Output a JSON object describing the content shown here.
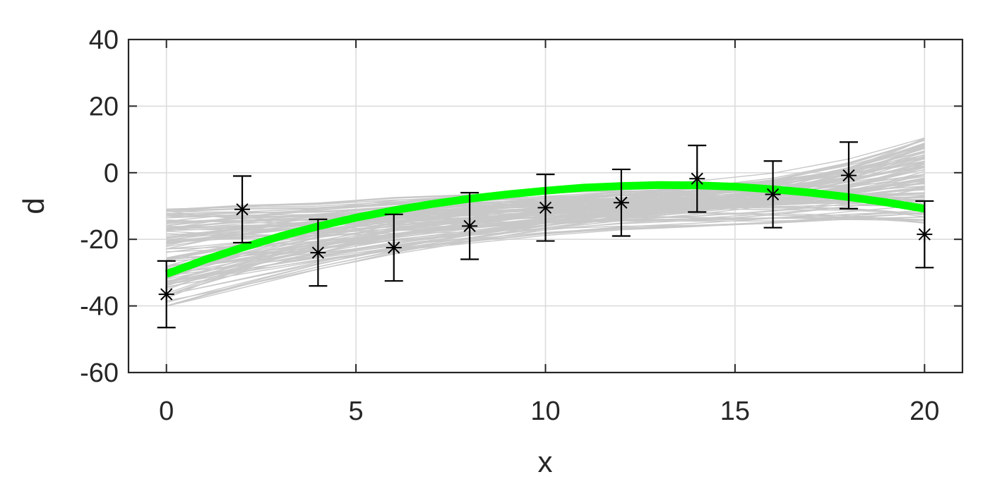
{
  "chart_data": {
    "type": "line",
    "xlabel": "x",
    "ylabel": "d",
    "xlim": [
      -1,
      21
    ],
    "ylim": [
      -60,
      40
    ],
    "xticks": [
      0,
      5,
      10,
      15,
      20
    ],
    "yticks": [
      -60,
      -40,
      -20,
      0,
      20,
      40
    ],
    "grid": true,
    "series": [
      {
        "kind": "fit_curve",
        "color": "#00ff00",
        "x": [
          0,
          1,
          2,
          3,
          4,
          5,
          6,
          7,
          8,
          9,
          10,
          11,
          12,
          13,
          14,
          15,
          16,
          17,
          18,
          19,
          20
        ],
        "values": [
          -30.4,
          -26.2,
          -22.5,
          -19.1,
          -16.1,
          -13.5,
          -11.3,
          -9.4,
          -7.8,
          -6.5,
          -5.4,
          -4.5,
          -4.0,
          -3.7,
          -3.8,
          -4.2,
          -5.0,
          -6.0,
          -7.3,
          -8.9,
          -10.8
        ]
      },
      {
        "kind": "data_with_errorbars",
        "color": "#000000",
        "marker": "asterisk",
        "x": [
          0,
          2,
          4,
          6,
          8,
          10,
          12,
          14,
          16,
          18,
          20
        ],
        "values": [
          -36.5,
          -11.0,
          -24.0,
          -22.5,
          -16.0,
          -10.5,
          -9.0,
          -1.8,
          -6.5,
          -0.8,
          -18.5
        ],
        "error": [
          10,
          10,
          10,
          10,
          10,
          10,
          10,
          10,
          10,
          10,
          10
        ]
      }
    ],
    "ensemble": {
      "color": "#c8c8c8",
      "count": 120,
      "x_range": [
        0,
        20
      ],
      "envelope_lower": [
        -43,
        -38,
        -33,
        -29,
        -26,
        -23,
        -21,
        -20,
        -19,
        -18,
        -18
      ],
      "envelope_upper": [
        -8,
        -6,
        -5,
        -3,
        -2,
        -1,
        0,
        1,
        3,
        7,
        13
      ]
    }
  }
}
